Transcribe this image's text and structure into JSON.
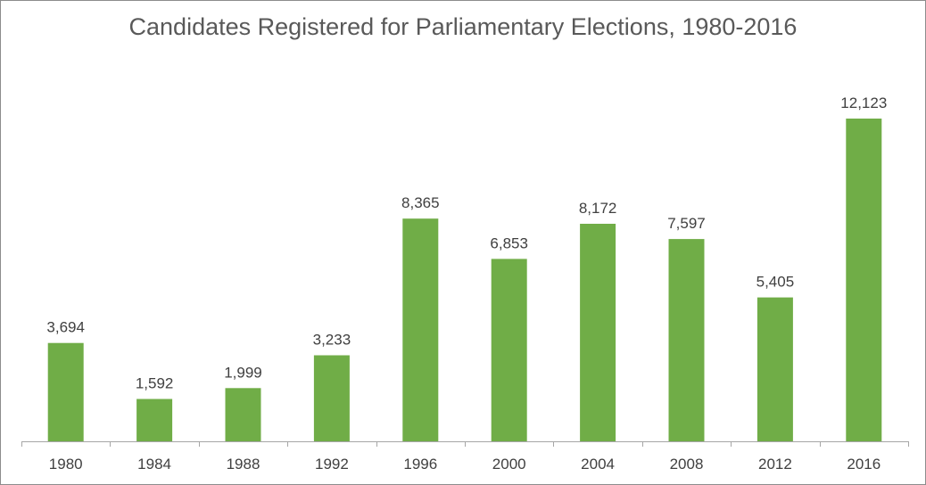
{
  "chart_data": {
    "type": "bar",
    "title": "Candidates Registered for Parliamentary Elections, 1980-2016",
    "xlabel": "",
    "ylabel": "",
    "categories": [
      "1980",
      "1984",
      "1988",
      "1992",
      "1996",
      "2000",
      "2004",
      "2008",
      "2012",
      "2016"
    ],
    "values": [
      3694,
      1592,
      1999,
      3233,
      8365,
      6853,
      8172,
      7597,
      5405,
      12123
    ],
    "data_labels": [
      "3,694",
      "1,592",
      "1,999",
      "3,233",
      "8,365",
      "6,853",
      "8,172",
      "7,597",
      "5,405",
      "12,123"
    ],
    "ylim": [
      0,
      14000
    ],
    "grid": false,
    "legend": "none",
    "bar_color": "#70ad47",
    "axis_color": "#a6a6a6",
    "text_color": "#404040",
    "title_color": "#595959"
  }
}
